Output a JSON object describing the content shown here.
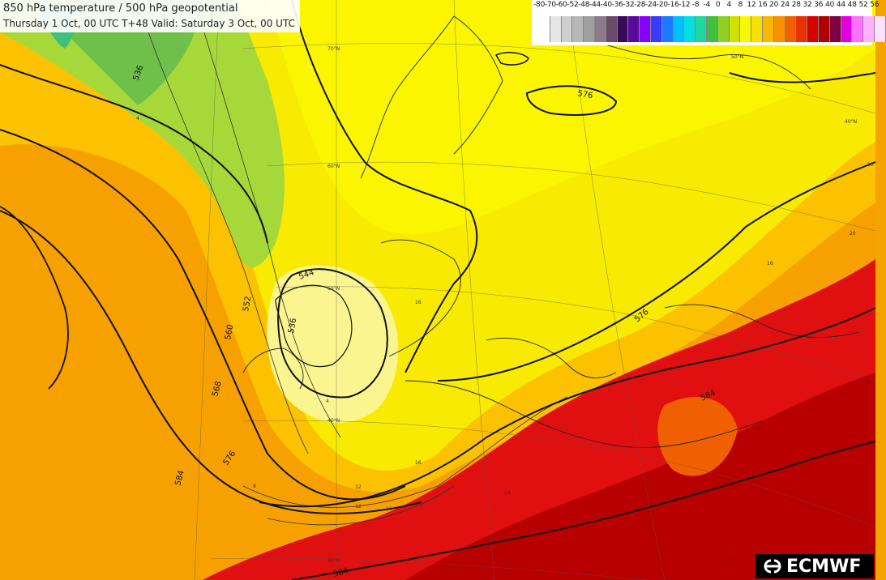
{
  "header": {
    "title": "850 hPa temperature / 500 hPa geopotential",
    "subtitle": "Thursday 1 Oct, 00 UTC T+48 Valid: Saturday 3 Oct, 00 UTC"
  },
  "legend": {
    "labels": [
      "-80",
      "-70",
      "-60",
      "-52",
      "-48",
      "-44",
      "-40",
      "-36",
      "-32",
      "-28",
      "-24",
      "-20",
      "-16",
      "-12",
      "-8",
      "-4",
      "0",
      "4",
      "8",
      "12",
      "16",
      "20",
      "24",
      "28",
      "32",
      "36",
      "40",
      "44",
      "48",
      "52",
      "56"
    ],
    "colors": [
      "#ffffff",
      "#e6e6e6",
      "#cfcfcf",
      "#b7b7b7",
      "#9f9f9f",
      "#8a7a8a",
      "#6a4a6a",
      "#3a0a5a",
      "#5a0a9a",
      "#8a00ff",
      "#3a3aff",
      "#1a7aff",
      "#00bfff",
      "#00e0e0",
      "#20d7a0",
      "#40c040",
      "#90d020",
      "#d0e000",
      "#f8f800",
      "#f8e000",
      "#f8b800",
      "#f89000",
      "#f06000",
      "#e83000",
      "#d80000",
      "#b00000",
      "#800040",
      "#e000e0",
      "#ff70ff",
      "#ffb0ff",
      "#ffe0ff"
    ]
  },
  "contours": {
    "geopotential_labels": [
      "536",
      "544",
      "552",
      "560",
      "568",
      "576",
      "584",
      "536",
      "576",
      "576",
      "584",
      "584"
    ],
    "temperature_labels": [
      "4",
      "4",
      "8",
      "12",
      "12",
      "16",
      "16",
      "16",
      "16",
      "20",
      "24",
      "20",
      "24"
    ]
  },
  "graticule": {
    "labels": [
      "70°N",
      "60°N",
      "50°N",
      "40°N",
      "30°N",
      "50°N",
      "40°N"
    ]
  },
  "branding": {
    "logo_text": "ECMWF"
  },
  "colors": {
    "warm_red": "#e00000",
    "orange": "#f59a00",
    "yellow": "#f8f000",
    "green": "#8ccd3c"
  }
}
